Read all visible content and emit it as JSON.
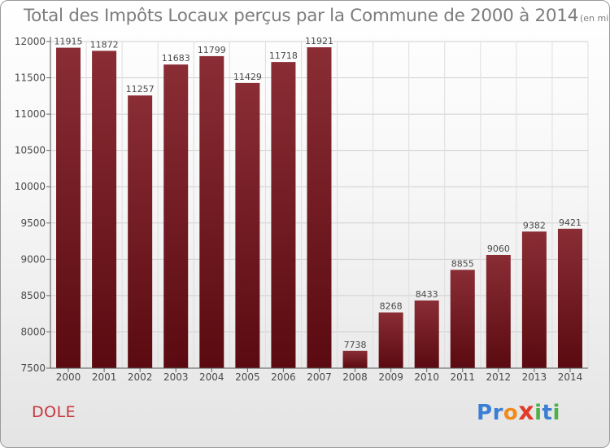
{
  "title": "Total des Impôts Locaux perçus par la Commune de 2000 à 2014",
  "title_unit": "(en milliers d'€)",
  "commune": "DOLE",
  "logo": {
    "letters": [
      "P",
      "r",
      "o",
      "x",
      "i",
      "t",
      "i"
    ],
    "colors": [
      "#3b7fd4",
      "#3b7fd4",
      "#f08a1c",
      "#e23a2b",
      "#4db04a",
      "#3b7fd4",
      "#4db04a"
    ]
  },
  "colors": {
    "bar_top": "#8a2d35",
    "bar_bottom": "#5a0a10",
    "commune": "#c8343c"
  },
  "chart_data": {
    "type": "bar",
    "title": "Total des Impôts Locaux perçus par la Commune de 2000 à 2014",
    "xlabel": "",
    "ylabel": "",
    "categories": [
      "2000",
      "2001",
      "2002",
      "2003",
      "2004",
      "2005",
      "2006",
      "2007",
      "2008",
      "2009",
      "2010",
      "2011",
      "2012",
      "2013",
      "2014"
    ],
    "values": [
      11915,
      11872,
      11257,
      11683,
      11799,
      11429,
      11718,
      11921,
      7738,
      8268,
      8433,
      8855,
      9060,
      9382,
      9421
    ],
    "ylim": [
      7500,
      12000
    ],
    "yticks": [
      7500,
      8000,
      8500,
      9000,
      9500,
      10000,
      10500,
      11000,
      11500,
      12000
    ],
    "grid": true,
    "data_labels": true
  }
}
